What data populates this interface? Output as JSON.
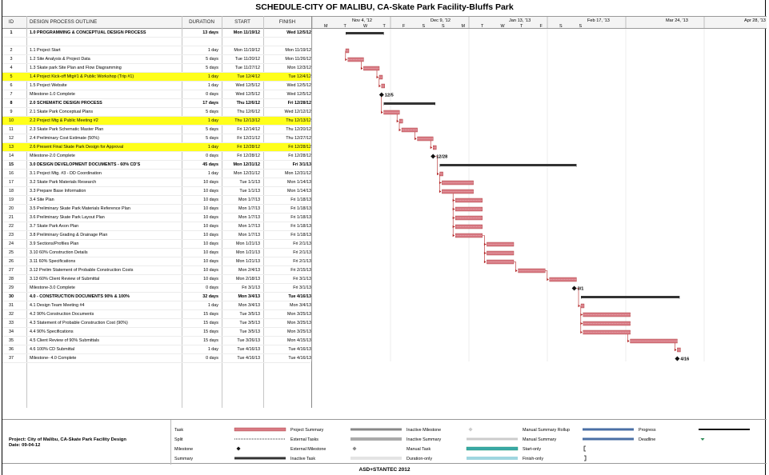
{
  "title": "SCHEDULE-CITY OF MALIBU, CA-Skate Park Facility-Bluffs Park",
  "columns": {
    "id": "ID",
    "name": "DESIGN PROCESS OUTLINE",
    "duration": "DURATION",
    "start": "START",
    "finish": "FINISH"
  },
  "timeline": {
    "months": [
      "Nov 4, '12",
      "Dec 9, '12",
      "Jan 13, '13",
      "Feb 17, '13",
      "Mar 24, '13",
      "Apr 28, '13"
    ],
    "weekdays": [
      "M",
      "T",
      "W",
      "T",
      "F",
      "S",
      "S",
      "M",
      "T",
      "W",
      "T",
      "F",
      "S",
      "S"
    ]
  },
  "colors": {
    "highlight": "#ffff1a",
    "task_bar": "#d87a84",
    "summary_bar": "#333333",
    "arrow": "#b22222"
  },
  "tasks": [
    {
      "id": "1",
      "name": "1.0 PROGRAMMING & CONCEPTUAL DESIGN PROCESS",
      "duration": "13 days",
      "start": "Mon 11/19/12",
      "finish": "Wed 12/5/12",
      "bold": true,
      "highlight": false,
      "kind": "summary"
    },
    {
      "id": "",
      "name": "",
      "duration": "",
      "start": "",
      "finish": "",
      "bold": false,
      "highlight": false,
      "kind": "blank"
    },
    {
      "id": "2",
      "name": "1.1 Project Start",
      "duration": "1 day",
      "start": "Mon 11/19/12",
      "finish": "Mon 11/19/12",
      "bold": false,
      "highlight": false,
      "kind": "task"
    },
    {
      "id": "3",
      "name": "1.2 Site Analysis & Project Data",
      "duration": "5 days",
      "start": "Tue 11/20/12",
      "finish": "Mon 11/26/12",
      "bold": false,
      "highlight": false,
      "kind": "task"
    },
    {
      "id": "4",
      "name": "1.3  Skate park Site Plan and Flow Diagramming",
      "duration": "5 days",
      "start": "Tue 11/27/12",
      "finish": "Mon 12/3/12",
      "bold": false,
      "highlight": false,
      "kind": "task"
    },
    {
      "id": "5",
      "name": "1.4 Project Kick-off Mtg#1 & Public Workshop (Trip #1)",
      "duration": "1 day",
      "start": "Tue 12/4/12",
      "finish": "Tue 12/4/12",
      "bold": false,
      "highlight": true,
      "kind": "task"
    },
    {
      "id": "6",
      "name": "1.5 Project Website",
      "duration": "1 day",
      "start": "Wed 12/5/12",
      "finish": "Wed 12/5/12",
      "bold": false,
      "highlight": false,
      "kind": "task"
    },
    {
      "id": "7",
      "name": "Milestone-1.0 Complete",
      "duration": "0 days",
      "start": "Wed 12/5/12",
      "finish": "Wed 12/5/12",
      "bold": false,
      "highlight": false,
      "kind": "milestone",
      "label": "12/5"
    },
    {
      "id": "8",
      "name": "2.0 SCHEMATIC DESIGN PROCESS",
      "duration": "17 days",
      "start": "Thu 12/6/12",
      "finish": "Fri 12/28/12",
      "bold": true,
      "highlight": false,
      "kind": "summary"
    },
    {
      "id": "9",
      "name": "2.1 Skate Park Conceptual Plans",
      "duration": "5 days",
      "start": "Thu 12/6/12",
      "finish": "Wed 12/12/12",
      "bold": false,
      "highlight": false,
      "kind": "task"
    },
    {
      "id": "10",
      "name": "2.2 Project Mtg & Public Meeting #2",
      "duration": "1 day",
      "start": "Thu 12/13/12",
      "finish": "Thu 12/13/12",
      "bold": false,
      "highlight": true,
      "kind": "task"
    },
    {
      "id": "11",
      "name": "2.3 Skate Park Schematic Master Plan",
      "duration": "5 days",
      "start": "Fri 12/14/12",
      "finish": "Thu 12/20/12",
      "bold": false,
      "highlight": false,
      "kind": "task"
    },
    {
      "id": "12",
      "name": "2.4  Preliminary Cost Estimate (50%)",
      "duration": "5 days",
      "start": "Fri 12/21/12",
      "finish": "Thu 12/27/12",
      "bold": false,
      "highlight": false,
      "kind": "task"
    },
    {
      "id": "13",
      "name": "2.6  Present Final Skate Park Design for Approval",
      "duration": "1 day",
      "start": "Fri 12/28/12",
      "finish": "Fri 12/28/12",
      "bold": false,
      "highlight": true,
      "kind": "task"
    },
    {
      "id": "14",
      "name": "Milestone-2.0 Complete",
      "duration": "0 days",
      "start": "Fri 12/28/12",
      "finish": "Fri 12/28/12",
      "bold": false,
      "highlight": false,
      "kind": "milestone",
      "label": "12/28"
    },
    {
      "id": "15",
      "name": "3.0 DESIGN DEVELOPMENT DOCUMENTS - 60% CD'S",
      "duration": "45 days",
      "start": "Mon 12/31/12",
      "finish": "Fri 3/1/13",
      "bold": true,
      "highlight": false,
      "kind": "summary"
    },
    {
      "id": "16",
      "name": "3.1 Project Mtg. #3 - DD Coordination",
      "duration": "1 day",
      "start": "Mon 12/31/12",
      "finish": "Mon 12/31/12",
      "bold": false,
      "highlight": false,
      "kind": "task"
    },
    {
      "id": "17",
      "name": "3.2 Skate Park Materials Research",
      "duration": "10 days",
      "start": "Tue 1/1/13",
      "finish": "Mon 1/14/13",
      "bold": false,
      "highlight": false,
      "kind": "task"
    },
    {
      "id": "18",
      "name": "3.3 Prepare Base Information",
      "duration": "10 days",
      "start": "Tue 1/1/13",
      "finish": "Mon 1/14/13",
      "bold": false,
      "highlight": false,
      "kind": "task"
    },
    {
      "id": "19",
      "name": "3.4 Site Plan",
      "duration": "10 days",
      "start": "Mon 1/7/13",
      "finish": "Fri 1/18/13",
      "bold": false,
      "highlight": false,
      "kind": "task"
    },
    {
      "id": "20",
      "name": "3.5 Preliminary Skate Park Materials Reference Plan",
      "duration": "10 days",
      "start": "Mon 1/7/13",
      "finish": "Fri 1/18/13",
      "bold": false,
      "highlight": false,
      "kind": "task"
    },
    {
      "id": "21",
      "name": "3.6 Preliminary Skate Park Layout Plan",
      "duration": "10 days",
      "start": "Mon 1/7/13",
      "finish": "Fri 1/18/13",
      "bold": false,
      "highlight": false,
      "kind": "task"
    },
    {
      "id": "22",
      "name": "3.7 Skate Park Axon Plan",
      "duration": "10 days",
      "start": "Mon 1/7/13",
      "finish": "Fri 1/18/13",
      "bold": false,
      "highlight": false,
      "kind": "task"
    },
    {
      "id": "23",
      "name": "3.8 Preliminary Grading & Drainage Plan",
      "duration": "10 days",
      "start": "Mon 1/7/13",
      "finish": "Fri 1/18/13",
      "bold": false,
      "highlight": false,
      "kind": "task"
    },
    {
      "id": "24",
      "name": "3.9 Sections/Profiles Plan",
      "duration": "10 days",
      "start": "Mon 1/21/13",
      "finish": "Fri 2/1/13",
      "bold": false,
      "highlight": false,
      "kind": "task"
    },
    {
      "id": "25",
      "name": "3.10 60% Construction Details",
      "duration": "10 days",
      "start": "Mon 1/21/13",
      "finish": "Fri 2/1/13",
      "bold": false,
      "highlight": false,
      "kind": "task"
    },
    {
      "id": "26",
      "name": "3.11 60% Specifications",
      "duration": "10 days",
      "start": "Mon 1/21/13",
      "finish": "Fri 2/1/13",
      "bold": false,
      "highlight": false,
      "kind": "task"
    },
    {
      "id": "27",
      "name": "3.12 Prelim Statement of Probable Construction Costs",
      "duration": "10 days",
      "start": "Mon 2/4/13",
      "finish": "Fri 2/15/13",
      "bold": false,
      "highlight": false,
      "kind": "task"
    },
    {
      "id": "28",
      "name": "3.13 60% Client Review of Submittal",
      "duration": "10 days",
      "start": "Mon 2/18/13",
      "finish": "Fri 3/1/13",
      "bold": false,
      "highlight": false,
      "kind": "task"
    },
    {
      "id": "29",
      "name": "Milestone-3.0 Complete",
      "duration": "0 days",
      "start": "Fri 3/1/13",
      "finish": "Fri 3/1/13",
      "bold": false,
      "highlight": false,
      "kind": "milestone",
      "label": "3/1"
    },
    {
      "id": "30",
      "name": "4.0 - CONSTRUCTION DOCUMENTS 90% & 100%",
      "duration": "32 days",
      "start": "Mon 3/4/13",
      "finish": "Tue 4/16/13",
      "bold": true,
      "highlight": false,
      "kind": "summary"
    },
    {
      "id": "31",
      "name": "4.1 Design Team Meeting #4",
      "duration": "1 day",
      "start": "Mon 3/4/13",
      "finish": "Mon 3/4/13",
      "bold": false,
      "highlight": false,
      "kind": "task"
    },
    {
      "id": "32",
      "name": "4.2 90% Construction Documents",
      "duration": "15 days",
      "start": "Tue 3/5/13",
      "finish": "Mon 3/25/13",
      "bold": false,
      "highlight": false,
      "kind": "task"
    },
    {
      "id": "33",
      "name": "4.3 Statement of Probable Construction Cost (90%)",
      "duration": "15 days",
      "start": "Tue 3/5/13",
      "finish": "Mon 3/25/13",
      "bold": false,
      "highlight": false,
      "kind": "task"
    },
    {
      "id": "34",
      "name": "4.4 90% Specifications",
      "duration": "15 days",
      "start": "Tue 3/5/13",
      "finish": "Mon 3/25/13",
      "bold": false,
      "highlight": false,
      "kind": "task"
    },
    {
      "id": "35",
      "name": "4.5 Client Review of 90% Submittals",
      "duration": "15 days",
      "start": "Tue 3/26/13",
      "finish": "Mon 4/15/13",
      "bold": false,
      "highlight": false,
      "kind": "task"
    },
    {
      "id": "36",
      "name": "4.6 100% CD Submittal",
      "duration": "1 day",
      "start": "Tue 4/16/13",
      "finish": "Tue 4/16/13",
      "bold": false,
      "highlight": false,
      "kind": "task"
    },
    {
      "id": "37",
      "name": "Milestone- 4.0 Complete",
      "duration": "0 days",
      "start": "Tue 4/16/13",
      "finish": "Tue 4/16/13",
      "bold": false,
      "highlight": false,
      "kind": "milestone",
      "label": "4/16"
    }
  ],
  "legend": {
    "project": "Project: City of Malibu, CA-Skate Park Facility Design",
    "date": "Date: 09-04-12",
    "items": [
      {
        "label": "Task",
        "symbol": "task-bar-symbol"
      },
      {
        "label": "Split",
        "symbol": "split-symbol"
      },
      {
        "label": "Milestone",
        "symbol": "milestone-diamond"
      },
      {
        "label": "Summary",
        "symbol": "summary-bracket"
      },
      {
        "label": "Project Summary",
        "symbol": "project-summary-bar"
      },
      {
        "label": "External Tasks",
        "symbol": "external-task-bar"
      },
      {
        "label": "External Milestone",
        "symbol": "external-milestone-diamond"
      },
      {
        "label": "Inactive Task",
        "symbol": "inactive-task-bar"
      },
      {
        "label": "Inactive Milestone",
        "symbol": "inactive-milestone-diamond"
      },
      {
        "label": "Inactive Summary",
        "symbol": "inactive-summary-bracket"
      },
      {
        "label": "Manual Task",
        "symbol": "manual-task-bar"
      },
      {
        "label": "Duration-only",
        "symbol": "duration-only-bar"
      },
      {
        "label": "Manual Summary Rollup",
        "symbol": "manual-summary-rollup-bar"
      },
      {
        "label": "Manual Summary",
        "symbol": "manual-summary-bracket"
      },
      {
        "label": "Start-only",
        "symbol": "start-only-bracket"
      },
      {
        "label": "Finish-only",
        "symbol": "finish-only-bracket"
      },
      {
        "label": "Progress",
        "symbol": "progress-line"
      },
      {
        "label": "Deadline",
        "symbol": "deadline-arrow"
      }
    ]
  },
  "footer": "ASD+STANTEC 2012"
}
